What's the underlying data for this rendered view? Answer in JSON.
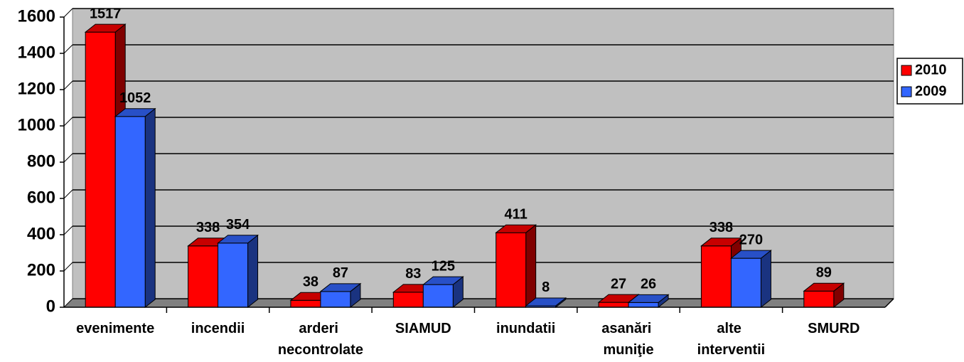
{
  "chart_data": {
    "type": "bar3d",
    "categories": [
      "evenimente",
      "incendii",
      "arderi necontrolate",
      "SIAMUD",
      "inundatii",
      "asanări muniţie",
      "alte interventii",
      "SMURD"
    ],
    "series": [
      {
        "name": "2010",
        "color": "#ff0000",
        "values": [
          1517,
          338,
          38,
          83,
          411,
          27,
          338,
          89
        ]
      },
      {
        "name": "2009",
        "color": "#3366ff",
        "values": [
          1052,
          354,
          87,
          125,
          8,
          26,
          270,
          null
        ]
      }
    ],
    "ylim": [
      0,
      1600
    ],
    "yticks": [
      0,
      200,
      400,
      600,
      800,
      1000,
      1200,
      1400,
      1600
    ],
    "grid": true,
    "legend": "right"
  }
}
